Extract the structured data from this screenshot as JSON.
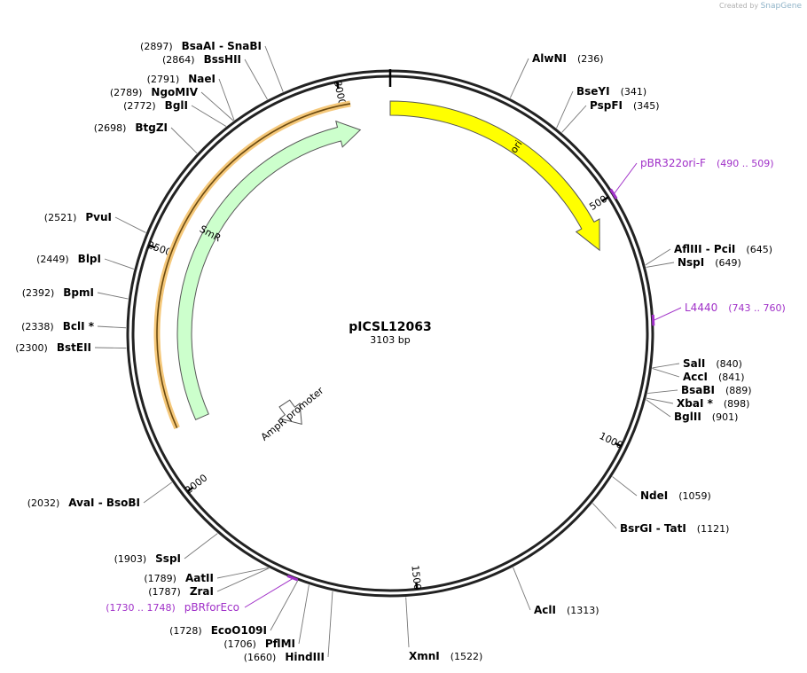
{
  "credit": {
    "prefix": "Created by",
    "brand": "SnapGene"
  },
  "plasmid": {
    "name": "pICSL12063",
    "length_label": "3103 bp",
    "length": 3103
  },
  "ticks": [
    {
      "pos": 0,
      "label": ""
    },
    {
      "pos": 500,
      "label": "500"
    },
    {
      "pos": 1000,
      "label": "1000"
    },
    {
      "pos": 1500,
      "label": "1500"
    },
    {
      "pos": 2000,
      "label": "2000"
    },
    {
      "pos": 2500,
      "label": "2500"
    },
    {
      "pos": 3000,
      "label": "3000"
    }
  ],
  "features": [
    {
      "name": "ori",
      "start": 0,
      "end": 589,
      "direction": "cw",
      "color": "#ffff00"
    },
    {
      "name": "SmR",
      "start": 2121,
      "end": 3031,
      "direction": "cw",
      "color": "#ccffcc",
      "highlight": "#f5c87a"
    },
    {
      "name": "AmpR promoter",
      "start": 1933,
      "end": 2038,
      "direction": "ccw",
      "color": "#ffffff"
    }
  ],
  "primers": [
    {
      "name": "pBR322ori-F",
      "range": "(490 .. 509)",
      "pos": 500
    },
    {
      "name": "L4440",
      "range": "(743 .. 760)",
      "pos": 751
    },
    {
      "name": "pBRforEco",
      "range": "(1730 .. 1748)",
      "pos": 1739
    }
  ],
  "sites": [
    {
      "name": "AlwNI",
      "pos": "(236)",
      "side": "right",
      "angle": 27.0
    },
    {
      "name": "BseYI",
      "pos": "(341)",
      "side": "right",
      "angle": 39.0
    },
    {
      "name": "PspFI",
      "pos": "(345)",
      "side": "right",
      "angle": 40.5
    },
    {
      "name": "AflIII  - PciI",
      "pos": "(645)",
      "side": "right",
      "angle": 75.0
    },
    {
      "name": "NspI",
      "pos": "(649)",
      "side": "right",
      "angle": 75.5
    },
    {
      "name": "SalI",
      "pos": "(840)",
      "side": "right",
      "angle": 97.5
    },
    {
      "name": "AccI",
      "pos": "(841)",
      "side": "right",
      "angle": 97.6
    },
    {
      "name": "BsaBI",
      "pos": "(889)",
      "side": "right",
      "angle": 103.1
    },
    {
      "name": "XbaI *",
      "pos": "(898)",
      "side": "right",
      "angle": 104.2
    },
    {
      "name": "BglII",
      "pos": "(901)",
      "side": "right",
      "angle": 104.5
    },
    {
      "name": "NdeI",
      "pos": "(1059)",
      "side": "right",
      "angle": 122.8
    },
    {
      "name": "BsrGI  - TatI",
      "pos": "(1121)",
      "side": "right",
      "angle": 130.0
    },
    {
      "name": "AclI",
      "pos": "(1313)",
      "side": "right",
      "angle": 152.3
    },
    {
      "name": "XmnI",
      "pos": "(1522)",
      "side": "right",
      "angle": 176.6
    },
    {
      "name": "HindIII",
      "pos": "(1660)",
      "side": "left",
      "angle": 192.6
    },
    {
      "name": "PflMI",
      "pos": "(1706)",
      "side": "left",
      "angle": 197.9
    },
    {
      "name": "EcoO109I",
      "pos": "(1728)",
      "side": "left",
      "angle": 200.5
    },
    {
      "name": "ZraI",
      "pos": "(1787)",
      "side": "left",
      "angle": 207.3
    },
    {
      "name": "AatII",
      "pos": "(1789)",
      "side": "left",
      "angle": 207.5
    },
    {
      "name": "SspI",
      "pos": "(1903)",
      "side": "left",
      "angle": 220.8
    },
    {
      "name": "AvaI  - BsoBI",
      "pos": "(2032)",
      "side": "left",
      "angle": 235.7
    },
    {
      "name": "BstEII",
      "pos": "(2300)",
      "side": "left",
      "angle": 266.8
    },
    {
      "name": "BclI *",
      "pos": "(2338)",
      "side": "left",
      "angle": 271.2
    },
    {
      "name": "BpmI",
      "pos": "(2392)",
      "side": "left",
      "angle": 277.5
    },
    {
      "name": "BlpI",
      "pos": "(2449)",
      "side": "left",
      "angle": 284.1
    },
    {
      "name": "PvuI",
      "pos": "(2521)",
      "side": "left",
      "angle": 292.4
    },
    {
      "name": "BtgZI",
      "pos": "(2698)",
      "side": "left",
      "angle": 313.0
    },
    {
      "name": "BglI",
      "pos": "(2772)",
      "side": "left",
      "angle": 321.6
    },
    {
      "name": "NgoMIV",
      "pos": "(2789)",
      "side": "left",
      "angle": 323.6
    },
    {
      "name": "NaeI",
      "pos": "(2791)",
      "side": "left",
      "angle": 323.8
    },
    {
      "name": "BssHII",
      "pos": "(2864)",
      "side": "left",
      "angle": 332.3
    },
    {
      "name": "BsaAI  - SnaBI",
      "pos": "(2897)",
      "side": "left",
      "angle": 336.1
    }
  ],
  "colors": {
    "backbone": "#222222",
    "primer": "#a030c8",
    "ori": "#ffff00",
    "smr": "#ccffcc",
    "smr_highlight": "#f5c87a"
  }
}
